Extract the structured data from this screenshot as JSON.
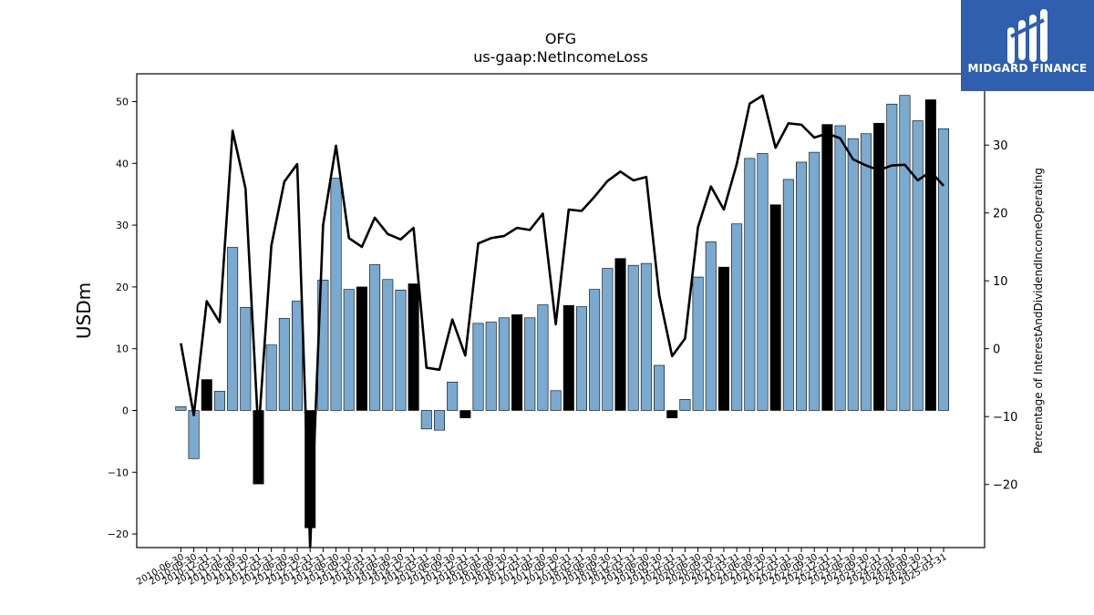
{
  "logo": {
    "text": "MIDGARD FINANCE"
  },
  "chart_data": {
    "type": "bar",
    "title": "OFG",
    "subtitle": "us-gaap:NetIncomeLoss",
    "ylabel": "USDm",
    "y2label": "Percentage of InterestAndDividendIncomeOperating",
    "ylim": [
      -22.2,
      54.5
    ],
    "y2lim": [
      -29.3,
      40.5
    ],
    "yticks": [
      -20,
      -10,
      0,
      10,
      20,
      30,
      40,
      50
    ],
    "y2ticks": [
      -20,
      -10,
      0,
      10,
      20,
      30
    ],
    "colors": {
      "bar": "#7aaad0",
      "bar_q4": "#000000",
      "line": "#000000"
    },
    "x_tick_labels": [
      "2010-06-30",
      "2010-09-30",
      "2010-12-31",
      "2011-03-31",
      "2011-06-30",
      "2011-09-30",
      "2011-12-31",
      "2012-03-31",
      "2012-06-30",
      "2012-09-30",
      "2012-12-31",
      "2013-03-31",
      "2013-06-30",
      "2013-09-30",
      "2013-12-31",
      "2014-03-31",
      "2014-06-30",
      "2014-09-30",
      "2014-12-31",
      "2015-03-31",
      "2015-06-30",
      "2015-09-30",
      "2015-12-31",
      "2016-03-31",
      "2016-06-30",
      "2016-09-30",
      "2016-12-31",
      "2017-03-31",
      "2017-06-30",
      "2017-09-30",
      "2017-12-31",
      "2018-03-31",
      "2018-06-30",
      "2018-09-30",
      "2018-12-31",
      "2019-03-31",
      "2019-06-30",
      "2019-09-30",
      "2019-12-31",
      "2020-03-31",
      "2020-06-30",
      "2020-09-30",
      "2020-12-31",
      "2021-03-31",
      "2021-06-30",
      "2021-09-30",
      "2021-12-31",
      "2022-03-31",
      "2022-06-30",
      "2022-09-30",
      "2022-12-31",
      "2023-03-31",
      "2023-06-30",
      "2023-09-30",
      "2023-12-31",
      "2024-03-31",
      "2024-06-30",
      "2024-09-30",
      "2024-12-31",
      "2025-03-31"
    ],
    "series": [
      {
        "kind": "bar",
        "values": [
          0.6,
          -7.8,
          5.0,
          3.1,
          26.4,
          16.7,
          -11.9,
          10.6,
          14.9,
          17.7,
          -19.0,
          21.1,
          37.6,
          19.6,
          20.0,
          23.6,
          21.2,
          19.5,
          20.5,
          -3.0,
          -3.2,
          4.6,
          -1.2,
          14.1,
          14.3,
          15.0,
          15.5,
          15.0,
          17.1,
          3.2,
          17.0,
          16.8,
          19.6,
          23.0,
          24.6,
          23.5,
          23.8,
          7.3,
          -1.2,
          1.8,
          21.6,
          27.3,
          23.2,
          30.2,
          40.8,
          41.6,
          33.3,
          37.4,
          40.2,
          41.8,
          46.3,
          46.1,
          44.0,
          44.8,
          46.5,
          49.6,
          51.0,
          46.9,
          50.3,
          45.6
        ]
      },
      {
        "kind": "line",
        "axis": "right",
        "values": [
          0.8,
          -9.8,
          7.0,
          3.9,
          32.1,
          23.6,
          -12.5,
          15.2,
          24.6,
          27.2,
          -29.3,
          18.2,
          29.9,
          16.3,
          15.0,
          19.3,
          16.9,
          16.1,
          17.8,
          -2.8,
          -3.1,
          4.3,
          -1.0,
          15.5,
          16.3,
          16.6,
          17.8,
          17.5,
          19.9,
          3.6,
          20.5,
          20.3,
          22.4,
          24.7,
          26.1,
          24.8,
          25.3,
          7.9,
          -1.1,
          1.5,
          17.9,
          23.9,
          20.5,
          27.2,
          36.1,
          37.3,
          29.6,
          33.2,
          33.0,
          31.1,
          31.7,
          31.0,
          27.9,
          27.0,
          26.3,
          27.0,
          27.1,
          24.8,
          26.1,
          24.0
        ]
      }
    ]
  }
}
